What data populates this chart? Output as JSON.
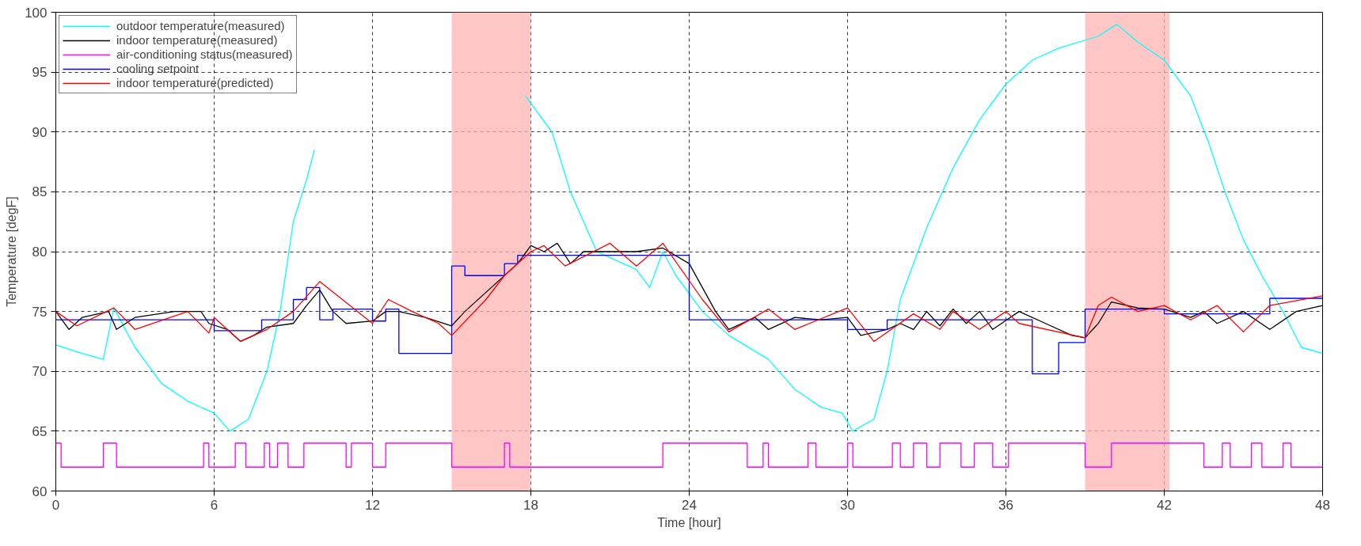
{
  "chart_data": {
    "type": "line",
    "xlabel": "Time [hour]",
    "ylabel": "Temperature [degF]",
    "xlim": [
      0,
      48
    ],
    "ylim": [
      60,
      100
    ],
    "xticks": [
      0,
      6,
      12,
      18,
      24,
      30,
      36,
      42,
      48
    ],
    "yticks": [
      60,
      65,
      70,
      75,
      80,
      85,
      90,
      95,
      100
    ],
    "grid": true,
    "legend": "top left",
    "line_style": "solid",
    "marker": "none",
    "bands": [
      {
        "axis": "x",
        "from": 15,
        "to": 18,
        "color": "#ffb3b3"
      },
      {
        "axis": "x",
        "from": 39,
        "to": 42.2,
        "color": "#ffb3b3"
      }
    ],
    "series": [
      {
        "name": "outdoor temperature(measured)",
        "color": "#00ffff",
        "x": [
          0,
          1,
          1.8,
          2.2,
          3,
          4,
          5,
          6,
          6.6,
          7.3,
          8,
          8.5,
          9,
          9.5,
          9.8,
          10.3,
          17.8,
          18.8,
          19.5,
          20.5,
          22,
          22.5,
          23,
          23.5,
          24.5,
          25.5,
          27,
          28,
          29,
          29.8,
          30.2,
          31,
          31.5,
          32,
          33,
          34,
          35,
          36,
          37,
          38,
          39.5,
          40.2,
          41,
          42,
          43,
          43.7,
          44.3,
          45,
          45.7,
          46.5,
          47.2,
          48
        ],
        "values": [
          72.2,
          71.5,
          71,
          75.3,
          72,
          69,
          67.5,
          66.5,
          65,
          66,
          70,
          75,
          82.5,
          86,
          88.5,
          null,
          93,
          90,
          85,
          80,
          78.5,
          77,
          80,
          78,
          75,
          73,
          71,
          68.5,
          67,
          66.5,
          65,
          66,
          70,
          76,
          82,
          87,
          91,
          94,
          96,
          97,
          98,
          99,
          97.5,
          96,
          93,
          89,
          85,
          81,
          78,
          75,
          72,
          71.5
        ]
      },
      {
        "name": "indoor temperature(measured)",
        "color": "#000000",
        "x": [
          0,
          0.5,
          1,
          2,
          2.3,
          3,
          4.5,
          5.5,
          5.8,
          6.5,
          7,
          7.5,
          8,
          9,
          9.5,
          10,
          10.5,
          11,
          12,
          12.5,
          13,
          14,
          15,
          15.5,
          16.5,
          17.5,
          18,
          18.5,
          19,
          19.5,
          20,
          21,
          22,
          23,
          24,
          25,
          25.5,
          26.5,
          27,
          28,
          29,
          30,
          30.5,
          31.5,
          32,
          32.5,
          33,
          33.5,
          34,
          34.5,
          35,
          35.5,
          36.5,
          37.5,
          38.5,
          39,
          39.5,
          40,
          41,
          42,
          43,
          43.5,
          44,
          45,
          46,
          47,
          48
        ],
        "values": [
          75,
          73.5,
          74.5,
          75,
          73.5,
          74.5,
          75,
          75,
          74,
          73.5,
          72.5,
          73,
          73.7,
          74,
          75.5,
          76.8,
          75,
          74,
          74.2,
          75,
          75,
          74.5,
          73.8,
          75,
          77,
          79,
          80.5,
          80,
          80.7,
          79,
          80,
          80,
          80,
          80.3,
          79,
          75,
          73.5,
          74.5,
          73.5,
          74.5,
          74.3,
          74.5,
          73,
          73.5,
          74,
          73.5,
          75,
          73.8,
          75.2,
          74,
          75,
          73.5,
          75,
          74,
          73,
          72.8,
          74,
          75.8,
          75.3,
          75.2,
          74.5,
          75,
          74,
          75,
          73.5,
          75,
          75.5
        ]
      },
      {
        "name": "air-conditioning status(measured)",
        "color": "#ff00ff",
        "type": "step",
        "x": [
          0,
          0.2,
          1.8,
          2.3,
          5.6,
          5.8,
          6.8,
          7.2,
          7.9,
          8.1,
          8.4,
          8.8,
          9.4,
          11,
          11.2,
          12,
          12.5,
          15,
          17,
          17.2,
          23,
          26.2,
          26.8,
          27,
          28.5,
          28.8,
          30,
          30.2,
          31.7,
          32,
          32.5,
          33,
          33.5,
          34.3,
          34.8,
          35.5,
          36.1,
          39,
          40,
          43.5,
          44.2,
          44.5,
          45.3,
          45.7,
          46.5,
          46.8,
          48
        ],
        "values": [
          64,
          62,
          64,
          62,
          64,
          62,
          64,
          62,
          64,
          62,
          64,
          62,
          64,
          62,
          64,
          62,
          64,
          62,
          64,
          62,
          64,
          62,
          64,
          62,
          64,
          62,
          64,
          62,
          64,
          62,
          64,
          62,
          64,
          62,
          64,
          62,
          64,
          62,
          64,
          62,
          64,
          62,
          64,
          62,
          64,
          62,
          62
        ]
      },
      {
        "name": "cooling setpoint",
        "color": "#0000ff",
        "type": "step",
        "x": [
          0,
          6,
          7.8,
          9,
          9.5,
          10,
          10.5,
          12,
          12.5,
          13,
          15,
          15.5,
          17,
          17.5,
          24,
          30,
          31.5,
          37,
          38,
          39,
          42,
          46,
          48
        ],
        "values": [
          74.3,
          73.4,
          74.3,
          76,
          77,
          74.3,
          75.2,
          74.2,
          75.2,
          71.5,
          78.8,
          78,
          79,
          79.7,
          74.3,
          73.5,
          74.3,
          69.8,
          72.4,
          75.2,
          74.8,
          76.1,
          76.1
        ]
      },
      {
        "name": "indoor temperature(predicted)",
        "color": "#ff0000",
        "x": [
          0,
          0.8,
          2.2,
          3,
          5,
          5.8,
          6,
          7,
          8,
          9,
          10,
          12,
          12.6,
          13.5,
          14.5,
          15,
          16.3,
          17,
          18,
          18.5,
          19.3,
          21,
          22,
          23,
          24.5,
          25.5,
          27,
          28,
          30,
          31,
          32.5,
          33.5,
          34,
          35,
          36,
          36.5,
          39,
          39.5,
          40,
          41,
          42,
          43,
          44,
          45,
          46,
          48
        ],
        "values": [
          75,
          73.8,
          75.3,
          73.5,
          75,
          73.2,
          74.5,
          72.5,
          73.5,
          75,
          77.5,
          74,
          76,
          75,
          74,
          73,
          76,
          78,
          80,
          80.5,
          78.8,
          80.7,
          78.8,
          80.7,
          76,
          73.3,
          75.2,
          73.5,
          75.3,
          72.5,
          74.8,
          73.5,
          75,
          73.5,
          75,
          74,
          72.8,
          75.5,
          76.2,
          75,
          75.5,
          74.3,
          75.5,
          73.3,
          75.5,
          76.3
        ]
      }
    ]
  }
}
